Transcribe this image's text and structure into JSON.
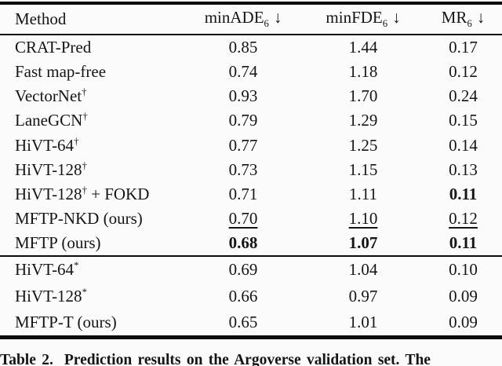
{
  "page": {
    "background": "#fbfbfb",
    "text_color": "#151515",
    "rule_color": "#0b0b0b"
  },
  "table": {
    "header": {
      "method_label": "Method",
      "metrics": [
        {
          "name": "minADE",
          "sub": "6",
          "arrow": "↓"
        },
        {
          "name": "minFDE",
          "sub": "6",
          "arrow": "↓"
        },
        {
          "name": "MR",
          "sub": "6",
          "arrow": "↓"
        }
      ]
    },
    "sections": [
      {
        "rows": [
          {
            "method": "CRAT-Pred",
            "sup": "",
            "suffix": "",
            "values": [
              "0.85",
              "1.44",
              "0.17"
            ],
            "styles": [
              "normal",
              "normal",
              "normal"
            ]
          },
          {
            "method": "Fast map-free",
            "sup": "",
            "suffix": "",
            "values": [
              "0.74",
              "1.18",
              "0.12"
            ],
            "styles": [
              "normal",
              "normal",
              "normal"
            ]
          },
          {
            "method": "VectorNet",
            "sup": "†",
            "suffix": "",
            "values": [
              "0.93",
              "1.70",
              "0.24"
            ],
            "styles": [
              "normal",
              "normal",
              "normal"
            ]
          },
          {
            "method": "LaneGCN",
            "sup": "†",
            "suffix": "",
            "values": [
              "0.79",
              "1.29",
              "0.15"
            ],
            "styles": [
              "normal",
              "normal",
              "normal"
            ]
          },
          {
            "method": "HiVT-64",
            "sup": "†",
            "suffix": "",
            "values": [
              "0.77",
              "1.25",
              "0.14"
            ],
            "styles": [
              "normal",
              "normal",
              "normal"
            ]
          },
          {
            "method": "HiVT-128",
            "sup": "†",
            "suffix": "",
            "values": [
              "0.73",
              "1.15",
              "0.13"
            ],
            "styles": [
              "normal",
              "normal",
              "normal"
            ]
          },
          {
            "method": "HiVT-128",
            "sup": "†",
            "suffix": " + FOKD",
            "values": [
              "0.71",
              "1.11",
              "0.11"
            ],
            "styles": [
              "normal",
              "normal",
              "bold"
            ]
          },
          {
            "method": "MFTP-NKD (ours)",
            "sup": "",
            "suffix": "",
            "values": [
              "0.70",
              "1.10",
              "0.12"
            ],
            "styles": [
              "underline",
              "underline",
              "underline"
            ]
          },
          {
            "method": "MFTP (ours)",
            "sup": "",
            "suffix": "",
            "values": [
              "0.68",
              "1.07",
              "0.11"
            ],
            "styles": [
              "bold",
              "bold",
              "bold"
            ]
          }
        ]
      },
      {
        "rows": [
          {
            "method": "HiVT-64",
            "sup": "*",
            "suffix": "",
            "values": [
              "0.69",
              "1.04",
              "0.10"
            ],
            "styles": [
              "normal",
              "normal",
              "normal"
            ]
          },
          {
            "method": "HiVT-128",
            "sup": "*",
            "suffix": "",
            "values": [
              "0.66",
              "0.97",
              "0.09"
            ],
            "styles": [
              "normal",
              "normal",
              "normal"
            ]
          },
          {
            "method": "MFTP-T (ours)",
            "sup": "",
            "suffix": "",
            "values": [
              "0.65",
              "1.01",
              "0.09"
            ],
            "styles": [
              "normal",
              "normal",
              "normal"
            ]
          }
        ]
      }
    ]
  },
  "caption": {
    "label": "Table 2.",
    "text": "Prediction results on the Argoverse validation set. The"
  }
}
